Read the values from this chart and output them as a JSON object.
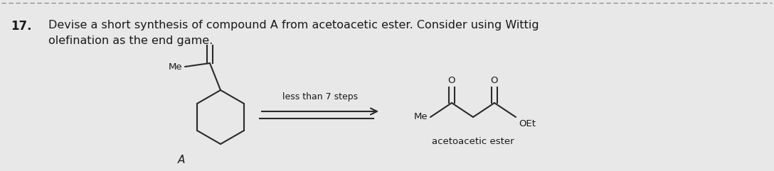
{
  "background_color": "#e8e8e8",
  "problem_number": "17.",
  "problem_text_line1": "Devise a short synthesis of compound A from acetoacetic ester. Consider using Wittig",
  "problem_text_line2": "olefination as the end game.",
  "label_A": "A",
  "label_Me_left": "Me",
  "label_Me_right": "Me",
  "label_OEt": "OEt",
  "label_steps": "less than 7 steps",
  "label_acetoacetic": "acetoacetic ester",
  "label_O1": "O",
  "label_O2": "O",
  "text_color": "#1a1a1a",
  "line_color": "#2a2a2a",
  "font_size_main": 11.5,
  "font_size_label": 10,
  "font_size_number": 12,
  "font_size_chem": 9.5,
  "lw": 1.5
}
